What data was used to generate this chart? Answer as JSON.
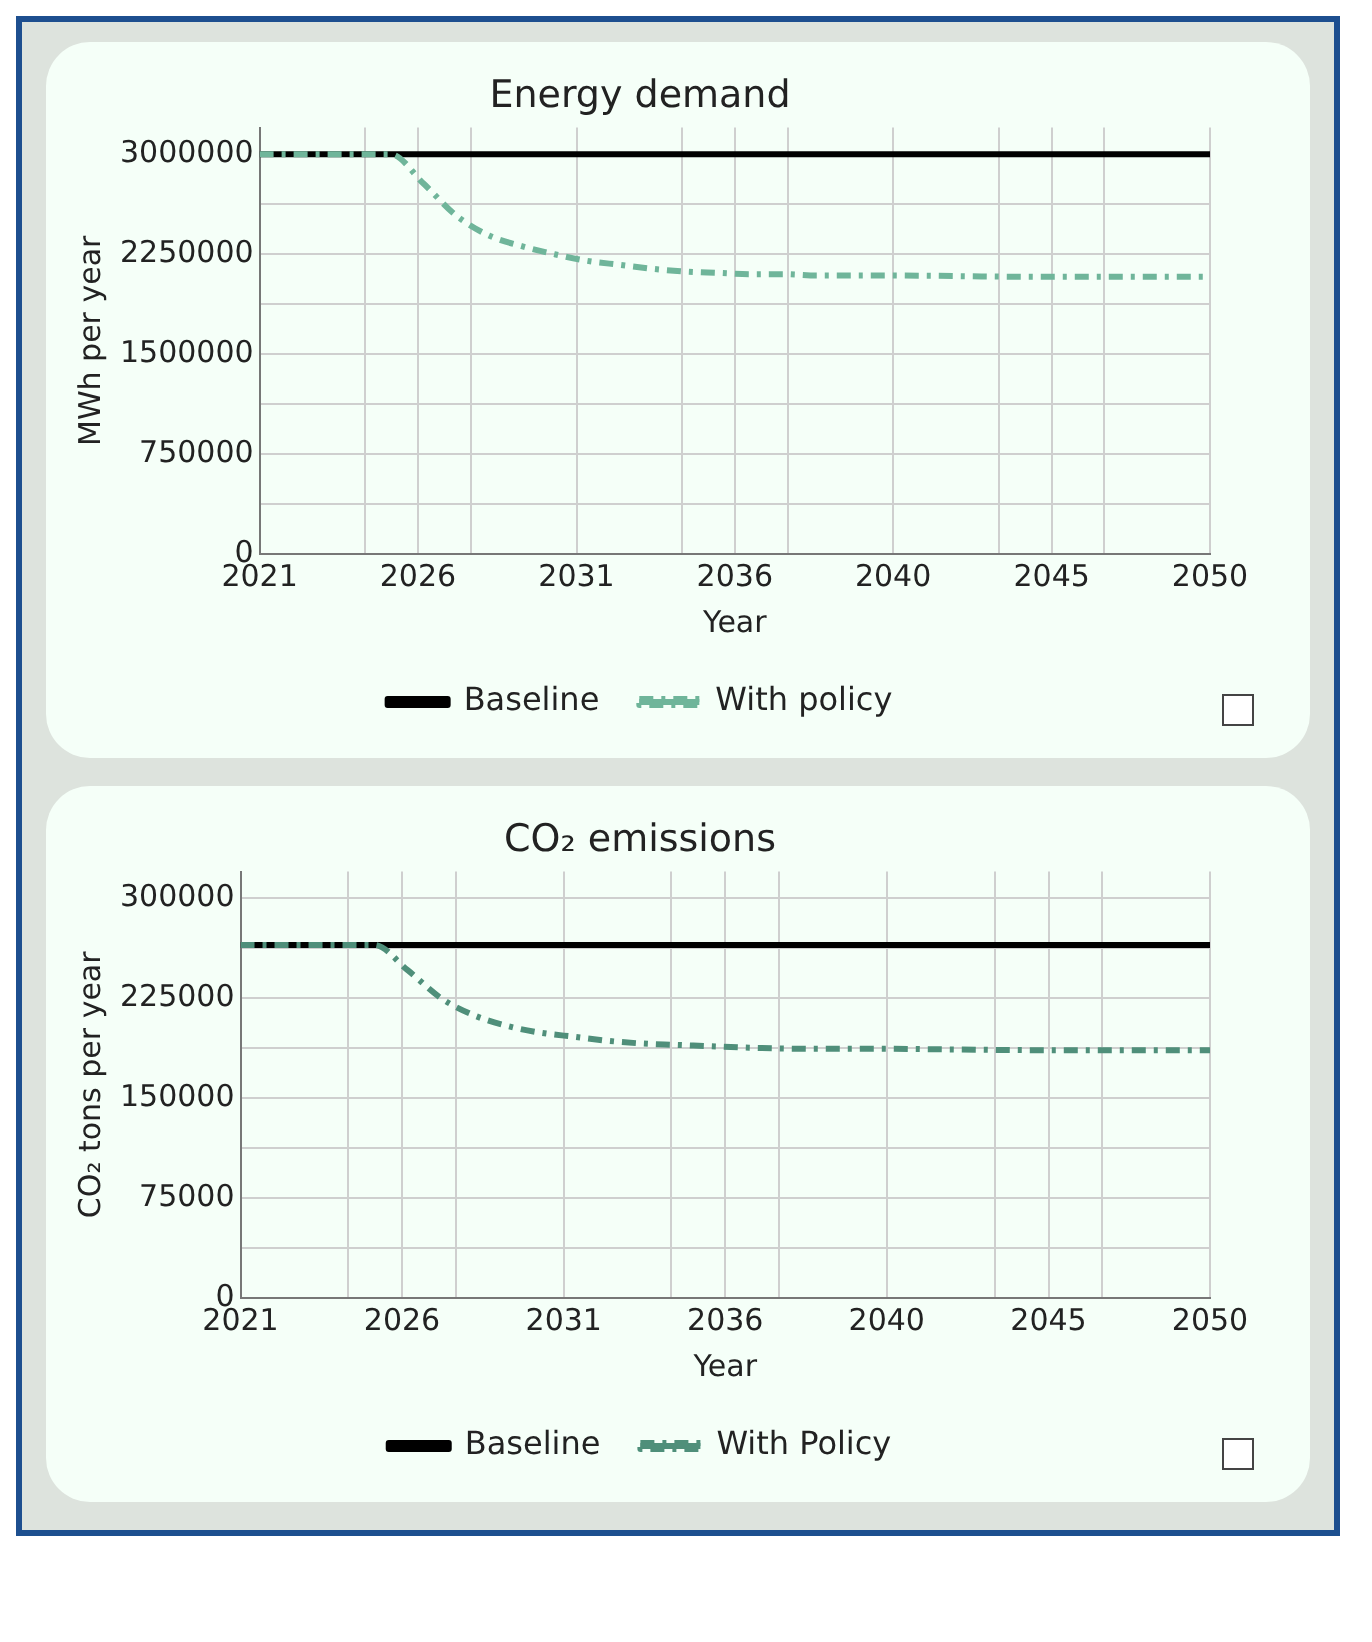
{
  "chart_data": [
    {
      "type": "line",
      "title": "Energy demand",
      "xlabel": "Year",
      "ylabel": "MWh per year",
      "xlim": [
        2021,
        2050
      ],
      "ylim": [
        0,
        3200000
      ],
      "xticks": [
        {
          "value": 2021,
          "label": "2021"
        },
        {
          "value": 2024.22,
          "label": null
        },
        {
          "value": 2025.83,
          "label": "2026"
        },
        {
          "value": 2027.44,
          "label": null
        },
        {
          "value": 2030.67,
          "label": "2031"
        },
        {
          "value": 2033.89,
          "label": null
        },
        {
          "value": 2035.5,
          "label": "2036"
        },
        {
          "value": 2037.11,
          "label": null
        },
        {
          "value": 2040.33,
          "label": "2040"
        },
        {
          "value": 2043.56,
          "label": null
        },
        {
          "value": 2045.17,
          "label": "2045"
        },
        {
          "value": 2046.78,
          "label": null
        },
        {
          "value": 2050,
          "label": "2050"
        }
      ],
      "yticks": [
        0,
        {
          "value": 375000,
          "label": null
        },
        750000,
        {
          "value": 1125000,
          "label": null
        },
        1500000,
        {
          "value": 1875000,
          "label": null
        },
        2250000,
        {
          "value": 2625000,
          "label": null
        },
        3000000
      ],
      "grid": true,
      "legend": "bottom",
      "marker": "none",
      "series": [
        {
          "name": "Baseline",
          "color": "#000000",
          "line_style": "solid",
          "x": [
            2021,
            2050
          ],
          "values": [
            3000000,
            3000000
          ]
        },
        {
          "name": "With policy",
          "color": "#6fb59a",
          "line_style": "dashed",
          "x": [
            2021,
            2022,
            2023,
            2024,
            2025,
            2026,
            2027,
            2028,
            2029,
            2030,
            2031,
            2032,
            2033,
            2034,
            2035,
            2036,
            2037,
            2038,
            2040,
            2045,
            2050
          ],
          "values": [
            3000000,
            3000000,
            3000000,
            3000000,
            3000000,
            2780000,
            2540000,
            2390000,
            2310000,
            2250000,
            2200000,
            2170000,
            2140000,
            2120000,
            2110000,
            2100000,
            2100000,
            2090000,
            2090000,
            2080000,
            2080000
          ]
        }
      ]
    },
    {
      "type": "line",
      "title": "CO₂ emissions",
      "xlabel": "Year",
      "ylabel": "CO₂ tons per year",
      "xlim": [
        2021,
        2050
      ],
      "ylim": [
        0,
        320000
      ],
      "xticks": [
        {
          "value": 2021,
          "label": "2021"
        },
        {
          "value": 2024.22,
          "label": null
        },
        {
          "value": 2025.83,
          "label": "2026"
        },
        {
          "value": 2027.44,
          "label": null
        },
        {
          "value": 2030.67,
          "label": "2031"
        },
        {
          "value": 2033.89,
          "label": null
        },
        {
          "value": 2035.5,
          "label": "2036"
        },
        {
          "value": 2037.11,
          "label": null
        },
        {
          "value": 2040.33,
          "label": "2040"
        },
        {
          "value": 2043.56,
          "label": null
        },
        {
          "value": 2045.17,
          "label": "2045"
        },
        {
          "value": 2046.78,
          "label": null
        },
        {
          "value": 2050,
          "label": "2050"
        }
      ],
      "yticks": [
        0,
        {
          "value": 37500,
          "label": null
        },
        75000,
        {
          "value": 112500,
          "label": null
        },
        150000,
        {
          "value": 187500,
          "label": null
        },
        225000,
        {
          "value": 262500,
          "label": null
        },
        300000
      ],
      "grid": true,
      "legend": "bottom",
      "marker": "none",
      "series": [
        {
          "name": "Baseline",
          "color": "#000000",
          "line_style": "solid",
          "x": [
            2021,
            2050
          ],
          "values": [
            265000,
            265000
          ]
        },
        {
          "name": "With Policy",
          "color": "#4f8f7a",
          "line_style": "dashed",
          "x": [
            2021,
            2022,
            2023,
            2024,
            2025,
            2026,
            2027,
            2028,
            2029,
            2030,
            2031,
            2032,
            2033,
            2034,
            2035,
            2036,
            2038,
            2040,
            2045,
            2050
          ],
          "values": [
            265000,
            265000,
            265000,
            265000,
            265000,
            246000,
            225000,
            212000,
            204000,
            199000,
            196000,
            193000,
            191000,
            190000,
            189000,
            188000,
            187000,
            187000,
            186000,
            186000
          ]
        }
      ]
    }
  ]
}
